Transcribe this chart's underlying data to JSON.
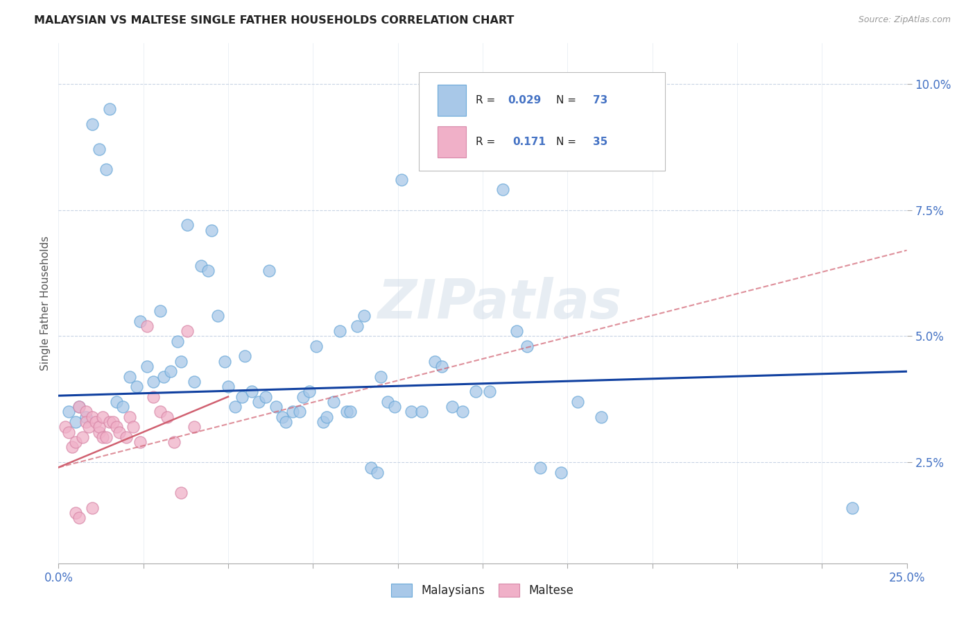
{
  "title": "MALAYSIAN VS MALTESE SINGLE FATHER HOUSEHOLDS CORRELATION CHART",
  "source": "Source: ZipAtlas.com",
  "ylabel": "Single Father Households",
  "ytick_vals": [
    2.5,
    5.0,
    7.5,
    10.0
  ],
  "xlim": [
    0.0,
    25.0
  ],
  "ylim": [
    0.5,
    10.8
  ],
  "color_malaysian": "#a8c8e8",
  "color_maltese": "#f0b0c8",
  "color_line_malaysian": "#1040a0",
  "color_line_maltese": "#d06070",
  "color_text_blue": "#4472c4",
  "malaysian_x": [
    0.3,
    0.5,
    0.6,
    0.8,
    1.0,
    1.2,
    1.4,
    1.5,
    1.7,
    1.9,
    2.1,
    2.3,
    2.4,
    2.6,
    2.8,
    3.0,
    3.1,
    3.3,
    3.5,
    3.6,
    3.8,
    4.0,
    4.2,
    4.4,
    4.5,
    4.7,
    4.9,
    5.0,
    5.2,
    5.4,
    5.5,
    5.7,
    5.9,
    6.1,
    6.2,
    6.4,
    6.6,
    6.7,
    6.9,
    7.1,
    7.2,
    7.4,
    7.6,
    7.8,
    7.9,
    8.1,
    8.3,
    8.5,
    8.6,
    8.8,
    9.0,
    9.2,
    9.4,
    9.5,
    9.7,
    9.9,
    10.1,
    10.4,
    10.7,
    11.1,
    11.3,
    11.6,
    11.9,
    12.3,
    12.7,
    13.1,
    13.5,
    13.8,
    14.2,
    14.8,
    15.3,
    16.0,
    23.4
  ],
  "malaysian_y": [
    3.5,
    3.3,
    3.6,
    3.4,
    9.2,
    8.7,
    8.3,
    9.5,
    3.7,
    3.6,
    4.2,
    4.0,
    5.3,
    4.4,
    4.1,
    5.5,
    4.2,
    4.3,
    4.9,
    4.5,
    7.2,
    4.1,
    6.4,
    6.3,
    7.1,
    5.4,
    4.5,
    4.0,
    3.6,
    3.8,
    4.6,
    3.9,
    3.7,
    3.8,
    6.3,
    3.6,
    3.4,
    3.3,
    3.5,
    3.5,
    3.8,
    3.9,
    4.8,
    3.3,
    3.4,
    3.7,
    5.1,
    3.5,
    3.5,
    5.2,
    5.4,
    2.4,
    2.3,
    4.2,
    3.7,
    3.6,
    8.1,
    3.5,
    3.5,
    4.5,
    4.4,
    3.6,
    3.5,
    3.9,
    3.9,
    7.9,
    5.1,
    4.8,
    2.4,
    2.3,
    3.7,
    3.4,
    1.6
  ],
  "maltese_x": [
    0.2,
    0.3,
    0.4,
    0.5,
    0.5,
    0.6,
    0.6,
    0.7,
    0.8,
    0.8,
    0.9,
    1.0,
    1.0,
    1.1,
    1.2,
    1.2,
    1.3,
    1.3,
    1.4,
    1.5,
    1.6,
    1.7,
    1.8,
    2.0,
    2.1,
    2.2,
    2.4,
    2.6,
    2.8,
    3.0,
    3.2,
    3.4,
    3.6,
    3.8,
    4.0
  ],
  "maltese_y": [
    3.2,
    3.1,
    2.8,
    2.9,
    1.5,
    1.4,
    3.6,
    3.0,
    3.5,
    3.3,
    3.2,
    3.4,
    1.6,
    3.3,
    3.1,
    3.2,
    3.0,
    3.4,
    3.0,
    3.3,
    3.3,
    3.2,
    3.1,
    3.0,
    3.4,
    3.2,
    2.9,
    5.2,
    3.8,
    3.5,
    3.4,
    2.9,
    1.9,
    5.1,
    3.2
  ],
  "my_line_x0": 0.0,
  "my_line_x1": 25.0,
  "my_line_y0": 3.82,
  "my_line_y1": 4.3,
  "mt_solid_x0": 0.0,
  "mt_solid_x1": 5.0,
  "mt_solid_y0": 2.4,
  "mt_solid_y1": 3.8,
  "mt_dash_x0": 0.0,
  "mt_dash_x1": 25.0,
  "mt_dash_y0": 2.4,
  "mt_dash_y1": 6.7
}
